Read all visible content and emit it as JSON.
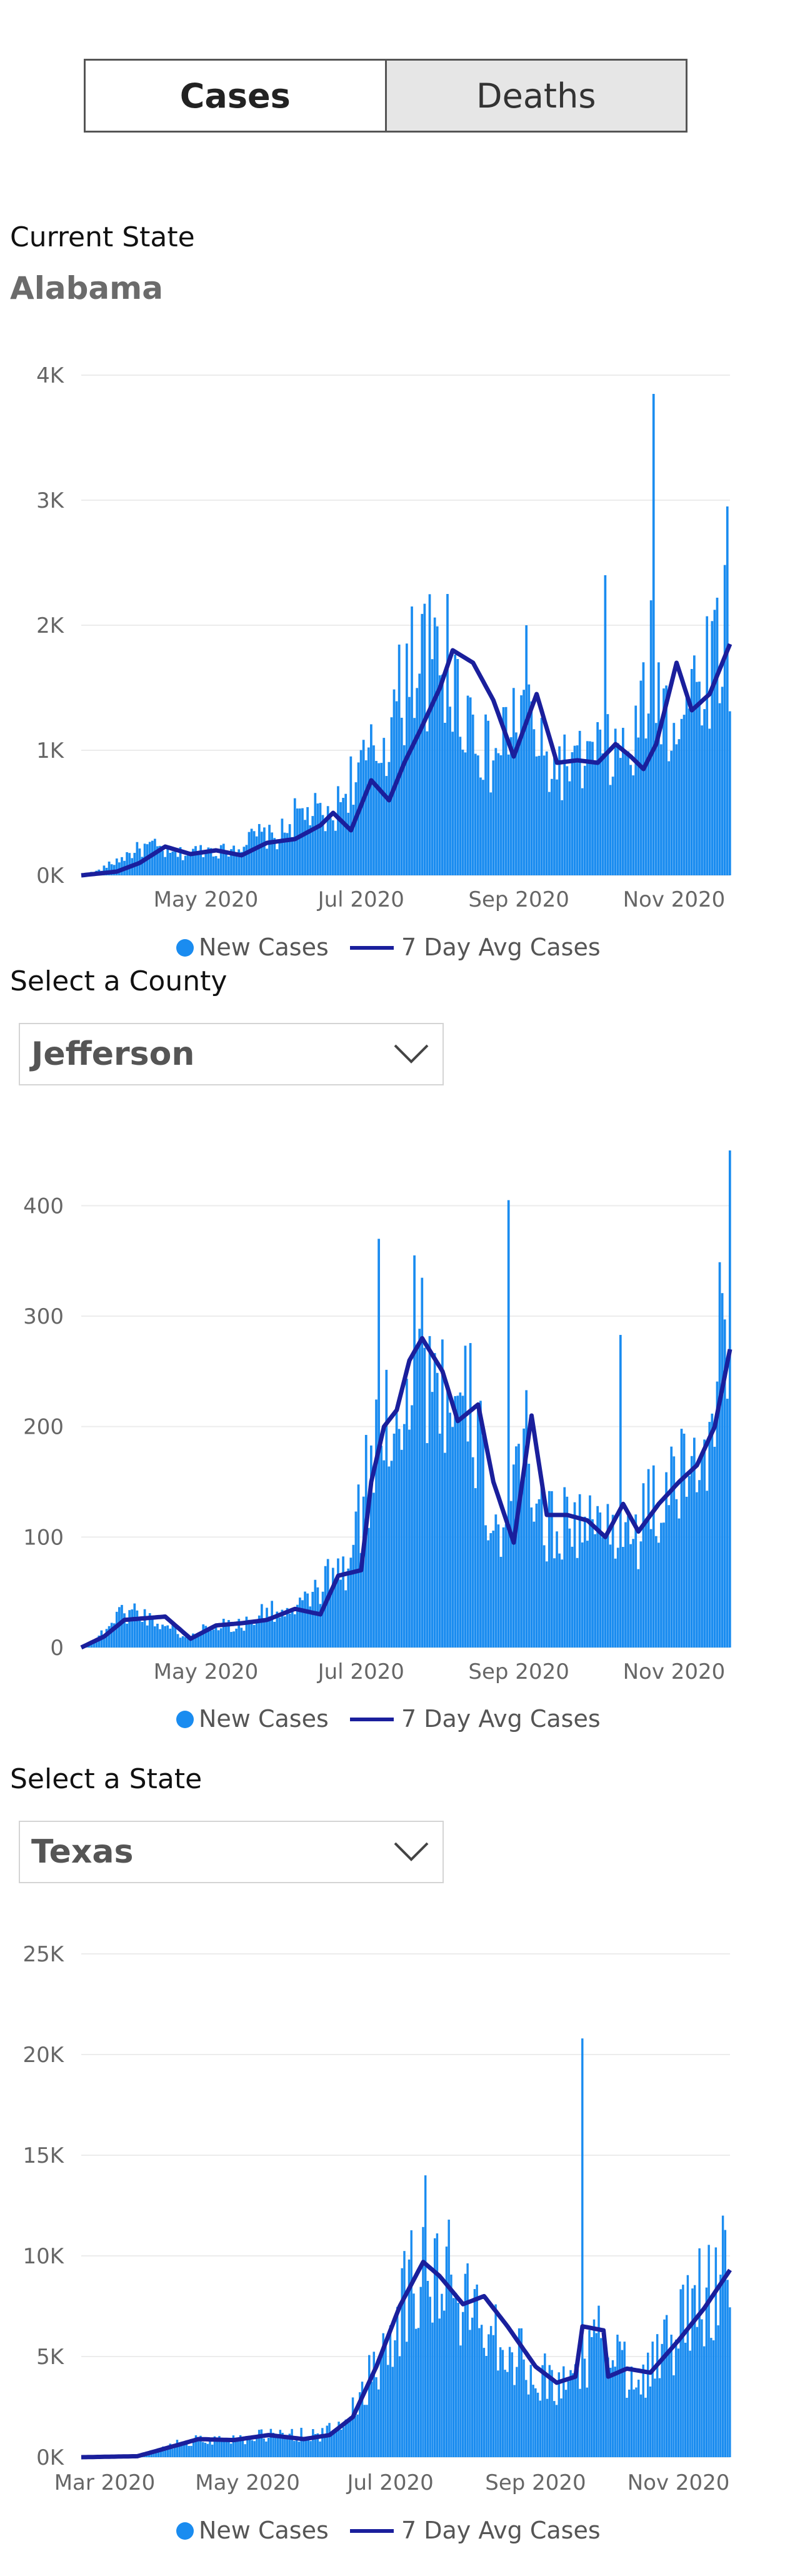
{
  "toggle": {
    "cases_label": "Cases",
    "deaths_label": "Deaths",
    "active": "cases"
  },
  "current_state": {
    "label": "Current State",
    "name": "Alabama"
  },
  "county_select": {
    "label": "Select a County",
    "value": "Jefferson"
  },
  "state_select": {
    "label": "Select a State",
    "value": "Texas"
  },
  "legend": {
    "bar_label": "New Cases",
    "line_label": "7 Day Avg Cases"
  },
  "colors": {
    "bar": "#1a8cf0",
    "line": "#1a1f9c",
    "grid": "#ececec"
  },
  "chart_data": [
    {
      "type": "bar",
      "id": "state-chart",
      "x_range": [
        "2020-03-13",
        "2020-11-23"
      ],
      "ylim": [
        0,
        4000
      ],
      "y_ticks": [
        {
          "value": 0,
          "label": "0K"
        },
        {
          "value": 1000,
          "label": "1K"
        },
        {
          "value": 2000,
          "label": "2K"
        },
        {
          "value": 3000,
          "label": "3K"
        },
        {
          "value": 4000,
          "label": "4K"
        }
      ],
      "x_ticks": [
        {
          "date": "2020-05-01",
          "label": "May 2020"
        },
        {
          "date": "2020-07-01",
          "label": "Jul 2020"
        },
        {
          "date": "2020-09-01",
          "label": "Sep 2020"
        },
        {
          "date": "2020-11-01",
          "label": "Nov 2020"
        }
      ],
      "series": [
        {
          "name": "New Cases",
          "kind": "bar"
        },
        {
          "name": "7 Day Avg Cases",
          "kind": "line"
        }
      ],
      "new_cases_samples": [
        [
          "2020-03-13",
          0
        ],
        [
          "2020-03-20",
          40
        ],
        [
          "2020-03-27",
          120
        ],
        [
          "2020-04-03",
          200
        ],
        [
          "2020-04-10",
          240
        ],
        [
          "2020-04-17",
          170
        ],
        [
          "2020-04-24",
          180
        ],
        [
          "2020-05-01",
          220
        ],
        [
          "2020-05-08",
          200
        ],
        [
          "2020-05-15",
          260
        ],
        [
          "2020-05-22",
          330
        ],
        [
          "2020-05-29",
          300
        ],
        [
          "2020-06-05",
          480
        ],
        [
          "2020-06-12",
          520
        ],
        [
          "2020-06-19",
          430
        ],
        [
          "2020-06-26",
          760
        ],
        [
          "2020-07-03",
          900
        ],
        [
          "2020-07-10",
          1100
        ],
        [
          "2020-07-17",
          1500
        ],
        [
          "2020-07-24",
          1800
        ],
        [
          "2020-07-31",
          1700
        ],
        [
          "2020-08-07",
          1500
        ],
        [
          "2020-08-14",
          1300
        ],
        [
          "2020-08-21",
          900
        ],
        [
          "2020-08-28",
          1200
        ],
        [
          "2020-09-04",
          1400
        ],
        [
          "2020-09-11",
          900
        ],
        [
          "2020-09-18",
          900
        ],
        [
          "2020-09-25",
          900
        ],
        [
          "2020-10-02",
          1000
        ],
        [
          "2020-10-09",
          1000
        ],
        [
          "2020-10-16",
          1000
        ],
        [
          "2020-10-23",
          1700
        ],
        [
          "2020-10-30",
          1300
        ],
        [
          "2020-11-06",
          1400
        ],
        [
          "2020-11-13",
          1700
        ],
        [
          "2020-11-20",
          2000
        ]
      ],
      "peaks": [
        [
          "2020-07-21",
          2150
        ],
        [
          "2020-08-04",
          2250
        ],
        [
          "2020-09-04",
          2000
        ],
        [
          "2020-10-05",
          2400
        ],
        [
          "2020-10-24",
          3850
        ],
        [
          "2020-11-22",
          2950
        ]
      ],
      "avg": [
        [
          "2020-03-13",
          0
        ],
        [
          "2020-03-27",
          30
        ],
        [
          "2020-04-05",
          100
        ],
        [
          "2020-04-15",
          230
        ],
        [
          "2020-04-25",
          170
        ],
        [
          "2020-05-05",
          200
        ],
        [
          "2020-05-15",
          160
        ],
        [
          "2020-05-25",
          260
        ],
        [
          "2020-06-05",
          290
        ],
        [
          "2020-06-15",
          400
        ],
        [
          "2020-06-20",
          500
        ],
        [
          "2020-06-27",
          360
        ],
        [
          "2020-07-05",
          760
        ],
        [
          "2020-07-12",
          600
        ],
        [
          "2020-07-18",
          900
        ],
        [
          "2020-07-24",
          1150
        ],
        [
          "2020-08-01",
          1500
        ],
        [
          "2020-08-06",
          1800
        ],
        [
          "2020-08-14",
          1700
        ],
        [
          "2020-08-22",
          1400
        ],
        [
          "2020-08-30",
          950
        ],
        [
          "2020-09-08",
          1450
        ],
        [
          "2020-09-16",
          900
        ],
        [
          "2020-09-24",
          920
        ],
        [
          "2020-10-02",
          900
        ],
        [
          "2020-10-09",
          1050
        ],
        [
          "2020-10-15",
          950
        ],
        [
          "2020-10-20",
          850
        ],
        [
          "2020-10-25",
          1050
        ],
        [
          "2020-11-02",
          1700
        ],
        [
          "2020-11-08",
          1320
        ],
        [
          "2020-11-15",
          1450
        ],
        [
          "2020-11-23",
          1850
        ]
      ]
    },
    {
      "type": "bar",
      "id": "county-chart",
      "x_range": [
        "2020-03-13",
        "2020-11-23"
      ],
      "ylim": [
        0,
        450
      ],
      "y_ticks": [
        {
          "value": 0,
          "label": "0"
        },
        {
          "value": 100,
          "label": "100"
        },
        {
          "value": 200,
          "label": "200"
        },
        {
          "value": 300,
          "label": "300"
        },
        {
          "value": 400,
          "label": "400"
        }
      ],
      "x_ticks": [
        {
          "date": "2020-05-01",
          "label": "May 2020"
        },
        {
          "date": "2020-07-01",
          "label": "Jul 2020"
        },
        {
          "date": "2020-09-01",
          "label": "Sep 2020"
        },
        {
          "date": "2020-11-01",
          "label": "Nov 2020"
        }
      ],
      "series": [
        {
          "name": "New Cases",
          "kind": "bar"
        },
        {
          "name": "7 Day Avg Cases",
          "kind": "line"
        }
      ],
      "new_cases_samples": [
        [
          "2020-03-13",
          0
        ],
        [
          "2020-03-20",
          10
        ],
        [
          "2020-03-27",
          30
        ],
        [
          "2020-04-03",
          35
        ],
        [
          "2020-04-10",
          25
        ],
        [
          "2020-04-17",
          20
        ],
        [
          "2020-04-24",
          8
        ],
        [
          "2020-05-01",
          20
        ],
        [
          "2020-05-08",
          22
        ],
        [
          "2020-05-15",
          20
        ],
        [
          "2020-05-22",
          30
        ],
        [
          "2020-05-29",
          35
        ],
        [
          "2020-06-05",
          30
        ],
        [
          "2020-06-12",
          50
        ],
        [
          "2020-06-19",
          65
        ],
        [
          "2020-06-26",
          70
        ],
        [
          "2020-07-03",
          150
        ],
        [
          "2020-07-10",
          210
        ],
        [
          "2020-07-17",
          240
        ],
        [
          "2020-07-24",
          280
        ],
        [
          "2020-07-31",
          260
        ],
        [
          "2020-08-07",
          200
        ],
        [
          "2020-08-14",
          220
        ],
        [
          "2020-08-21",
          120
        ],
        [
          "2020-08-28",
          100
        ],
        [
          "2020-09-04",
          200
        ],
        [
          "2020-09-11",
          110
        ],
        [
          "2020-09-18",
          120
        ],
        [
          "2020-09-25",
          115
        ],
        [
          "2020-10-02",
          110
        ],
        [
          "2020-10-09",
          120
        ],
        [
          "2020-10-16",
          100
        ],
        [
          "2020-10-23",
          130
        ],
        [
          "2020-10-30",
          140
        ],
        [
          "2020-11-06",
          160
        ],
        [
          "2020-11-13",
          200
        ],
        [
          "2020-11-20",
          280
        ]
      ],
      "peaks": [
        [
          "2020-07-08",
          370
        ],
        [
          "2020-07-22",
          355
        ],
        [
          "2020-08-28",
          405
        ],
        [
          "2020-10-11",
          283
        ],
        [
          "2020-11-23",
          450
        ]
      ],
      "avg": [
        [
          "2020-03-13",
          0
        ],
        [
          "2020-03-22",
          10
        ],
        [
          "2020-03-30",
          25
        ],
        [
          "2020-04-15",
          28
        ],
        [
          "2020-04-25",
          8
        ],
        [
          "2020-05-05",
          20
        ],
        [
          "2020-05-15",
          22
        ],
        [
          "2020-05-25",
          25
        ],
        [
          "2020-06-05",
          35
        ],
        [
          "2020-06-15",
          30
        ],
        [
          "2020-06-22",
          65
        ],
        [
          "2020-07-01",
          70
        ],
        [
          "2020-07-05",
          150
        ],
        [
          "2020-07-10",
          200
        ],
        [
          "2020-07-15",
          215
        ],
        [
          "2020-07-20",
          260
        ],
        [
          "2020-07-25",
          280
        ],
        [
          "2020-08-02",
          250
        ],
        [
          "2020-08-08",
          205
        ],
        [
          "2020-08-16",
          220
        ],
        [
          "2020-08-22",
          150
        ],
        [
          "2020-08-30",
          95
        ],
        [
          "2020-09-06",
          210
        ],
        [
          "2020-09-12",
          120
        ],
        [
          "2020-09-20",
          120
        ],
        [
          "2020-09-28",
          115
        ],
        [
          "2020-10-05",
          100
        ],
        [
          "2020-10-12",
          130
        ],
        [
          "2020-10-18",
          105
        ],
        [
          "2020-10-26",
          130
        ],
        [
          "2020-11-03",
          150
        ],
        [
          "2020-11-10",
          165
        ],
        [
          "2020-11-17",
          200
        ],
        [
          "2020-11-23",
          270
        ]
      ]
    },
    {
      "type": "bar",
      "id": "selected-state-chart",
      "x_range": [
        "2020-02-20",
        "2020-11-23"
      ],
      "ylim": [
        0,
        25000
      ],
      "y_ticks": [
        {
          "value": 0,
          "label": "0K"
        },
        {
          "value": 5000,
          "label": "5K"
        },
        {
          "value": 10000,
          "label": "10K"
        },
        {
          "value": 15000,
          "label": "15K"
        },
        {
          "value": 20000,
          "label": "20K"
        },
        {
          "value": 25000,
          "label": "25K"
        }
      ],
      "x_ticks": [
        {
          "date": "2020-03-01",
          "label": "Mar 2020"
        },
        {
          "date": "2020-05-01",
          "label": "May 2020"
        },
        {
          "date": "2020-07-01",
          "label": "Jul 2020"
        },
        {
          "date": "2020-09-01",
          "label": "Sep 2020"
        },
        {
          "date": "2020-11-01",
          "label": "Nov 2020"
        }
      ],
      "series": [
        {
          "name": "New Cases",
          "kind": "bar"
        },
        {
          "name": "7 Day Avg Cases",
          "kind": "line"
        }
      ],
      "new_cases_samples": [
        [
          "2020-02-20",
          0
        ],
        [
          "2020-03-10",
          20
        ],
        [
          "2020-03-20",
          200
        ],
        [
          "2020-04-01",
          700
        ],
        [
          "2020-04-10",
          900
        ],
        [
          "2020-04-20",
          900
        ],
        [
          "2020-05-01",
          1000
        ],
        [
          "2020-05-10",
          1100
        ],
        [
          "2020-05-20",
          1200
        ],
        [
          "2020-06-01",
          1100
        ],
        [
          "2020-06-10",
          1600
        ],
        [
          "2020-06-20",
          3500
        ],
        [
          "2020-07-01",
          6500
        ],
        [
          "2020-07-10",
          9000
        ],
        [
          "2020-07-20",
          9500
        ],
        [
          "2020-08-01",
          7500
        ],
        [
          "2020-08-10",
          7500
        ],
        [
          "2020-08-20",
          5500
        ],
        [
          "2020-09-01",
          4500
        ],
        [
          "2020-09-10",
          3500
        ],
        [
          "2020-09-20",
          4500
        ],
        [
          "2020-10-01",
          6500
        ],
        [
          "2020-10-10",
          4500
        ],
        [
          "2020-10-20",
          4500
        ],
        [
          "2020-11-01",
          6500
        ],
        [
          "2020-11-10",
          8000
        ],
        [
          "2020-11-23",
          9500
        ]
      ],
      "peaks": [
        [
          "2020-07-16",
          14000
        ],
        [
          "2020-07-26",
          11800
        ],
        [
          "2020-09-21",
          20800
        ],
        [
          "2020-11-20",
          12000
        ]
      ],
      "avg": [
        [
          "2020-02-20",
          0
        ],
        [
          "2020-03-15",
          50
        ],
        [
          "2020-04-01",
          600
        ],
        [
          "2020-04-10",
          900
        ],
        [
          "2020-04-25",
          850
        ],
        [
          "2020-05-10",
          1100
        ],
        [
          "2020-05-25",
          900
        ],
        [
          "2020-06-05",
          1100
        ],
        [
          "2020-06-15",
          2000
        ],
        [
          "2020-06-25",
          4500
        ],
        [
          "2020-07-05",
          7500
        ],
        [
          "2020-07-15",
          9700
        ],
        [
          "2020-07-22",
          9000
        ],
        [
          "2020-08-01",
          7600
        ],
        [
          "2020-08-10",
          8000
        ],
        [
          "2020-08-20",
          6500
        ],
        [
          "2020-09-01",
          4500
        ],
        [
          "2020-09-10",
          3700
        ],
        [
          "2020-09-18",
          4000
        ],
        [
          "2020-09-21",
          6500
        ],
        [
          "2020-09-30",
          6300
        ],
        [
          "2020-10-02",
          4000
        ],
        [
          "2020-10-10",
          4400
        ],
        [
          "2020-10-20",
          4200
        ],
        [
          "2020-11-01",
          5800
        ],
        [
          "2020-11-12",
          7400
        ],
        [
          "2020-11-23",
          9300
        ]
      ]
    }
  ]
}
